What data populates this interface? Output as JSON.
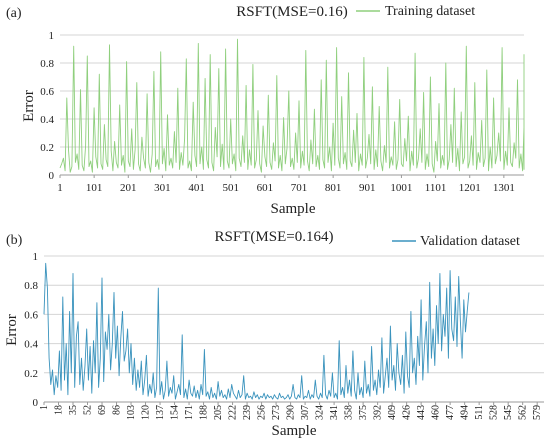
{
  "chart_data": [
    {
      "type": "line",
      "panel_label": "(a)",
      "title": "RSFT(MSE=0.16)",
      "xlabel": "Sample",
      "ylabel": "Error",
      "xlim": [
        1,
        1360
      ],
      "ylim": [
        0,
        1
      ],
      "x_ticks": [
        1,
        101,
        201,
        301,
        401,
        501,
        601,
        701,
        801,
        901,
        1001,
        1101,
        1201,
        1301
      ],
      "y_ticks": [
        0,
        0.2,
        0.4,
        0.6,
        0.8,
        1
      ],
      "y_tick_labels": [
        "0",
        "0.2",
        "0.4",
        "0.6",
        "0.8",
        "1"
      ],
      "grid": "horizontal",
      "legend_position": "top-right",
      "series": [
        {
          "name": "Training dataset",
          "color": "#8fcf7d",
          "sample_step": 5,
          "values": [
            0.05,
            0.08,
            0.12,
            0.03,
            0.55,
            0.18,
            0.02,
            0.06,
            0.92,
            0.09,
            0.15,
            0.04,
            0.61,
            0.07,
            0.03,
            0.21,
            0.85,
            0.06,
            0.1,
            0.02,
            0.48,
            0.13,
            0.05,
            0.72,
            0.08,
            0.04,
            0.36,
            0.11,
            0.06,
            0.93,
            0.17,
            0.03,
            0.24,
            0.09,
            0.05,
            0.5,
            0.07,
            0.14,
            0.02,
            0.81,
            0.1,
            0.06,
            0.33,
            0.04,
            0.18,
            0.66,
            0.08,
            0.03,
            0.27,
            0.12,
            0.05,
            0.58,
            0.09,
            0.02,
            0.15,
            0.74,
            0.06,
            0.11,
            0.04,
            0.88,
            0.08,
            0.19,
            0.03,
            0.43,
            0.07,
            0.12,
            0.05,
            0.31,
            0.09,
            0.62,
            0.04,
            0.16,
            0.07,
            0.26,
            0.83,
            0.05,
            0.1,
            0.03,
            0.52,
            0.14,
            0.06,
            0.94,
            0.08,
            0.2,
            0.04,
            0.69,
            0.11,
            0.05,
            0.86,
            0.09,
            0.03,
            0.34,
            0.13,
            0.76,
            0.06,
            0.22,
            0.04,
            0.9,
            0.1,
            0.05,
            0.4,
            0.08,
            0.15,
            0.03,
            0.97,
            0.12,
            0.06,
            0.28,
            0.09,
            0.64,
            0.04,
            0.18,
            0.07,
            0.79,
            0.05,
            0.11,
            0.46,
            0.08,
            0.02,
            0.35,
            0.13,
            0.06,
            0.57,
            0.09,
            0.04,
            0.23,
            0.1,
            0.71,
            0.05,
            0.14,
            0.03,
            0.41,
            0.08,
            0.19,
            0.6,
            0.06,
            0.12,
            0.04,
            0.3,
            0.09,
            0.53,
            0.05,
            0.17,
            0.07,
            0.89,
            0.1,
            0.03,
            0.25,
            0.08,
            0.47,
            0.06,
            0.14,
            0.04,
            0.68,
            0.11,
            0.05,
            0.82,
            0.09,
            0.2,
            0.03,
            0.37,
            0.07,
            0.91,
            0.12,
            0.05,
            0.56,
            0.08,
            0.16,
            0.04,
            0.73,
            0.1,
            0.06,
            0.32,
            0.09,
            0.44,
            0.03,
            0.15,
            0.07,
            0.84,
            0.05,
            0.12,
            0.29,
            0.08,
            0.63,
            0.04,
            0.18,
            0.06,
            0.49,
            0.1,
            0.03,
            0.21,
            0.09,
            0.77,
            0.05,
            0.13,
            0.07,
            0.38,
            0.04,
            0.11,
            0.54,
            0.08,
            0.06,
            0.26,
            0.1,
            0.42,
            0.03,
            0.17,
            0.07,
            0.87,
            0.05,
            0.12,
            0.33,
            0.09,
            0.59,
            0.04,
            0.15,
            0.06,
            0.7,
            0.08,
            0.02,
            0.24,
            0.1,
            0.51,
            0.05,
            0.14,
            0.07,
            0.8,
            0.04,
            0.11,
            0.36,
            0.09,
            0.62,
            0.06,
            0.19,
            0.03,
            0.45,
            0.08,
            0.13,
            0.92,
            0.05,
            0.1,
            0.28,
            0.07,
            0.66,
            0.04,
            0.16,
            0.09,
            0.39,
            0.06,
            0.12,
            0.75,
            0.03,
            0.2,
            0.05,
            0.55,
            0.08,
            0.14,
            0.3,
            0.1,
            0.91,
            0.04,
            0.17,
            0.07,
            0.48,
            0.09,
            0.06,
            0.23,
            0.12,
            0.68,
            0.05,
            0.15,
            0.03,
            0.34,
            0.08,
            0.86,
            0.11,
            0.06,
            0.43,
            0.09,
            0.2,
            0.04,
            0.6
          ]
        }
      ]
    },
    {
      "type": "line",
      "panel_label": "(b)",
      "title": "RSFT(MSE=0.164)",
      "xlabel": "Sample",
      "ylabel": "Error",
      "xlim": [
        1,
        587
      ],
      "ylim": [
        0,
        1
      ],
      "x_ticks": [
        1,
        18,
        35,
        52,
        69,
        86,
        103,
        120,
        137,
        154,
        171,
        188,
        205,
        222,
        239,
        256,
        273,
        290,
        307,
        324,
        341,
        358,
        375,
        392,
        409,
        426,
        443,
        460,
        477,
        494,
        511,
        528,
        545,
        562,
        579
      ],
      "y_ticks": [
        0,
        0.2,
        0.4,
        0.6,
        0.8,
        1
      ],
      "y_tick_labels": [
        "0",
        "0.2",
        "0.4",
        "0.6",
        "0.8",
        "1"
      ],
      "grid": "horizontal",
      "legend_position": "top-right",
      "series": [
        {
          "name": "Validation dataset",
          "color": "#3a93bd",
          "sample_step": 2,
          "values": [
            0.6,
            0.95,
            0.78,
            0.3,
            0.12,
            0.22,
            0.05,
            0.18,
            0.1,
            0.35,
            0.08,
            0.72,
            0.15,
            0.4,
            0.05,
            0.62,
            0.2,
            0.88,
            0.1,
            0.45,
            0.55,
            0.12,
            0.3,
            0.08,
            0.25,
            0.5,
            0.15,
            0.38,
            0.06,
            0.42,
            0.2,
            0.68,
            0.1,
            0.3,
            0.85,
            0.14,
            0.48,
            0.36,
            0.6,
            0.22,
            0.4,
            0.75,
            0.3,
            0.52,
            0.18,
            0.44,
            0.62,
            0.28,
            0.35,
            0.5,
            0.2,
            0.4,
            0.12,
            0.3,
            0.08,
            0.22,
            0.1,
            0.28,
            0.05,
            0.15,
            0.32,
            0.04,
            0.12,
            0.06,
            0.2,
            0.03,
            0.1,
            0.78,
            0.05,
            0.14,
            0.02,
            0.08,
            0.28,
            0.04,
            0.1,
            0.06,
            0.18,
            0.02,
            0.07,
            0.12,
            0.05,
            0.46,
            0.03,
            0.09,
            0.02,
            0.15,
            0.06,
            0.04,
            0.11,
            0.03,
            0.08,
            0.02,
            0.12,
            0.05,
            0.36,
            0.04,
            0.07,
            0.02,
            0.1,
            0.03,
            0.06,
            0.02,
            0.14,
            0.04,
            0.08,
            0.03,
            0.05,
            0.02,
            0.09,
            0.03,
            0.12,
            0.06,
            0.04,
            0.02,
            0.08,
            0.03,
            0.05,
            0.18,
            0.02,
            0.06,
            0.03,
            0.04,
            0.02,
            0.07,
            0.03,
            0.05,
            0.02,
            0.04,
            0.03,
            0.06,
            0.02,
            0.05,
            0.03,
            0.04,
            0.02,
            0.05,
            0.03,
            0.02,
            0.06,
            0.03,
            0.04,
            0.02,
            0.03,
            0.05,
            0.02,
            0.04,
            0.12,
            0.03,
            0.02,
            0.05,
            0.03,
            0.18,
            0.02,
            0.04,
            0.03,
            0.08,
            0.02,
            0.05,
            0.03,
            0.15,
            0.04,
            0.02,
            0.06,
            0.03,
            0.32,
            0.05,
            0.02,
            0.08,
            0.04,
            0.2,
            0.03,
            0.06,
            0.02,
            0.42,
            0.05,
            0.1,
            0.03,
            0.25,
            0.06,
            0.15,
            0.04,
            0.35,
            0.08,
            0.02,
            0.2,
            0.05,
            0.1,
            0.03,
            0.28,
            0.06,
            0.12,
            0.04,
            0.38,
            0.08,
            0.15,
            0.05,
            0.22,
            0.1,
            0.44,
            0.06,
            0.18,
            0.3,
            0.1,
            0.52,
            0.15,
            0.25,
            0.08,
            0.4,
            0.2,
            0.12,
            0.32,
            0.06,
            0.48,
            0.18,
            0.1,
            0.62,
            0.2,
            0.3,
            0.12,
            0.45,
            0.25,
            0.7,
            0.15,
            0.38,
            0.55,
            0.2,
            0.82,
            0.3,
            0.5,
            0.25,
            0.66,
            0.4,
            0.88,
            0.35,
            0.6,
            0.45,
            0.78,
            0.3,
            0.9,
            0.5,
            0.42,
            0.72,
            0.38,
            0.86,
            0.55,
            0.3,
            0.7,
            0.48,
            0.62,
            0.75
          ]
        }
      ]
    }
  ]
}
